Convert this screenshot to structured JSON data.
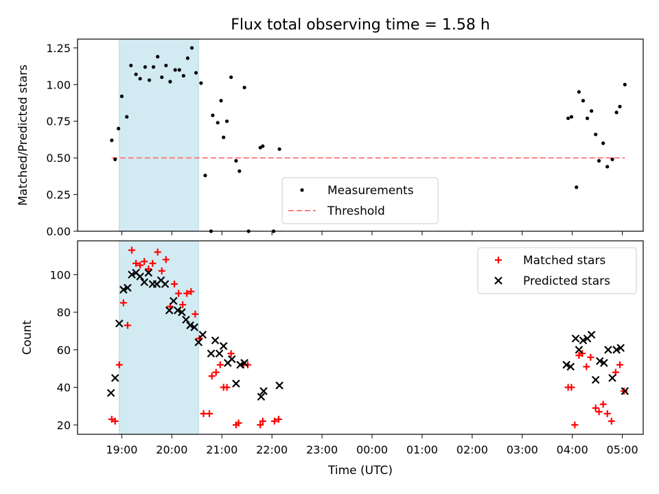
{
  "title": "Flux total observing time = 1.58 h",
  "colors": {
    "measurement": "#000000",
    "threshold": "#ff8080",
    "matched": "#ff0000",
    "predicted": "#000000",
    "span": "#add8e6"
  },
  "chart_data": [
    {
      "type": "scatter",
      "panel": "top",
      "ylabel": "Matched/Predicted stars",
      "xlabel": "",
      "ylim": [
        0,
        1.31
      ],
      "xlim": [
        "18:07",
        "05:25"
      ],
      "yticks": [
        "0.00",
        "0.25",
        "0.50",
        "0.75",
        "1.00",
        "1.25"
      ],
      "ytick_values": [
        0,
        0.25,
        0.5,
        0.75,
        1.0,
        1.25
      ],
      "xticks": [
        "19:00",
        "20:00",
        "21:00",
        "22:00",
        "23:00",
        "00:00",
        "01:00",
        "02:00",
        "03:00",
        "04:00",
        "05:00"
      ],
      "show_xtick_labels": false,
      "highlight_span": {
        "from": "18:57",
        "to": "20:32"
      },
      "legend": {
        "placement": "lower center",
        "entries": [
          "Measurements",
          "Threshold"
        ]
      },
      "threshold": {
        "name": "Threshold",
        "value": 0.5,
        "from": "18:48",
        "to": "05:03"
      },
      "series": [
        {
          "name": "Measurements",
          "points": [
            [
              "18:48",
              0.62
            ],
            [
              "18:52",
              0.49
            ],
            [
              "18:56",
              0.7
            ],
            [
              "19:00",
              0.92
            ],
            [
              "19:06",
              0.78
            ],
            [
              "19:11",
              1.13
            ],
            [
              "19:17",
              1.07
            ],
            [
              "19:22",
              1.04
            ],
            [
              "19:28",
              1.12
            ],
            [
              "19:33",
              1.03
            ],
            [
              "19:38",
              1.12
            ],
            [
              "19:43",
              1.19
            ],
            [
              "19:48",
              1.05
            ],
            [
              "19:53",
              1.13
            ],
            [
              "19:58",
              1.02
            ],
            [
              "20:04",
              1.1
            ],
            [
              "20:09",
              1.1
            ],
            [
              "20:14",
              1.06
            ],
            [
              "20:19",
              1.18
            ],
            [
              "20:24",
              1.25
            ],
            [
              "20:29",
              1.08
            ],
            [
              "20:35",
              1.01
            ],
            [
              "20:40",
              0.38
            ],
            [
              "20:47",
              0.0
            ],
            [
              "20:49",
              0.79
            ],
            [
              "20:55",
              0.74
            ],
            [
              "20:59",
              0.89
            ],
            [
              "21:02",
              0.64
            ],
            [
              "21:06",
              0.75
            ],
            [
              "21:11",
              1.05
            ],
            [
              "21:17",
              0.48
            ],
            [
              "21:21",
              0.41
            ],
            [
              "21:27",
              0.98
            ],
            [
              "21:32",
              0.0
            ],
            [
              "21:46",
              0.57
            ],
            [
              "21:49",
              0.58
            ],
            [
              "22:02",
              0.0
            ],
            [
              "22:09",
              0.56
            ],
            [
              "03:55",
              0.77
            ],
            [
              "03:59",
              0.78
            ],
            [
              "04:05",
              0.3
            ],
            [
              "04:08",
              0.95
            ],
            [
              "04:13",
              0.89
            ],
            [
              "04:18",
              0.77
            ],
            [
              "04:23",
              0.82
            ],
            [
              "04:28",
              0.66
            ],
            [
              "04:32",
              0.48
            ],
            [
              "04:37",
              0.6
            ],
            [
              "04:42",
              0.44
            ],
            [
              "04:48",
              0.49
            ],
            [
              "04:53",
              0.81
            ],
            [
              "04:57",
              0.85
            ],
            [
              "05:03",
              1.0
            ]
          ]
        }
      ]
    },
    {
      "type": "scatter",
      "panel": "bottom",
      "ylabel": "Count",
      "xlabel": "Time (UTC)",
      "ylim": [
        15,
        118
      ],
      "xlim": [
        "18:07",
        "05:25"
      ],
      "yticks": [
        "20",
        "40",
        "60",
        "80",
        "100"
      ],
      "ytick_values": [
        20,
        40,
        60,
        80,
        100
      ],
      "xticks": [
        "19:00",
        "20:00",
        "21:00",
        "22:00",
        "23:00",
        "00:00",
        "01:00",
        "02:00",
        "03:00",
        "04:00",
        "05:00"
      ],
      "show_xtick_labels": true,
      "highlight_span": {
        "from": "18:57",
        "to": "20:32"
      },
      "legend": {
        "placement": "upper right",
        "entries": [
          "Matched stars",
          "Predicted stars"
        ]
      },
      "series": [
        {
          "name": "Matched stars",
          "marker": "plus",
          "points": [
            [
              "18:48",
              23
            ],
            [
              "18:52",
              22
            ],
            [
              "18:57",
              52
            ],
            [
              "19:02",
              85
            ],
            [
              "19:07",
              73
            ],
            [
              "19:12",
              113
            ],
            [
              "19:17",
              106
            ],
            [
              "19:22",
              105
            ],
            [
              "19:27",
              107
            ],
            [
              "19:32",
              103
            ],
            [
              "19:37",
              106
            ],
            [
              "19:43",
              112
            ],
            [
              "19:48",
              102
            ],
            [
              "19:53",
              108
            ],
            [
              "19:58",
              83
            ],
            [
              "20:03",
              95
            ],
            [
              "20:08",
              90
            ],
            [
              "20:13",
              84
            ],
            [
              "20:18",
              90
            ],
            [
              "20:23",
              91
            ],
            [
              "20:28",
              79
            ],
            [
              "20:33",
              66
            ],
            [
              "20:38",
              26
            ],
            [
              "20:45",
              26
            ],
            [
              "20:48",
              46
            ],
            [
              "20:53",
              48
            ],
            [
              "20:58",
              52
            ],
            [
              "21:02",
              40
            ],
            [
              "21:06",
              40
            ],
            [
              "21:11",
              58
            ],
            [
              "21:17",
              20
            ],
            [
              "21:20",
              21
            ],
            [
              "21:26",
              52
            ],
            [
              "21:31",
              52
            ],
            [
              "21:46",
              20
            ],
            [
              "21:49",
              22
            ],
            [
              "22:03",
              22
            ],
            [
              "22:08",
              23
            ],
            [
              "03:55",
              40
            ],
            [
              "03:59",
              40
            ],
            [
              "04:03",
              20
            ],
            [
              "04:08",
              57
            ],
            [
              "04:12",
              58
            ],
            [
              "04:17",
              51
            ],
            [
              "04:22",
              56
            ],
            [
              "04:28",
              29
            ],
            [
              "04:32",
              27
            ],
            [
              "04:37",
              31
            ],
            [
              "04:42",
              26
            ],
            [
              "04:47",
              22
            ],
            [
              "04:52",
              48
            ],
            [
              "04:57",
              52
            ],
            [
              "05:02",
              38
            ]
          ]
        },
        {
          "name": "Predicted stars",
          "marker": "x",
          "points": [
            [
              "18:47",
              37
            ],
            [
              "18:52",
              45
            ],
            [
              "18:57",
              74
            ],
            [
              "19:02",
              92
            ],
            [
              "19:07",
              93
            ],
            [
              "19:12",
              100
            ],
            [
              "19:17",
              101
            ],
            [
              "19:22",
              99
            ],
            [
              "19:27",
              96
            ],
            [
              "19:32",
              101
            ],
            [
              "19:37",
              95
            ],
            [
              "19:42",
              95
            ],
            [
              "19:47",
              97
            ],
            [
              "19:52",
              95
            ],
            [
              "19:57",
              81
            ],
            [
              "20:02",
              86
            ],
            [
              "20:07",
              81
            ],
            [
              "20:12",
              80
            ],
            [
              "20:17",
              76
            ],
            [
              "20:22",
              73
            ],
            [
              "20:27",
              72
            ],
            [
              "20:32",
              64
            ],
            [
              "20:37",
              68
            ],
            [
              "20:47",
              58
            ],
            [
              "20:52",
              65
            ],
            [
              "20:57",
              58
            ],
            [
              "21:02",
              62
            ],
            [
              "21:07",
              53
            ],
            [
              "21:12",
              55
            ],
            [
              "21:17",
              42
            ],
            [
              "21:22",
              52
            ],
            [
              "21:27",
              53
            ],
            [
              "21:47",
              35
            ],
            [
              "21:50",
              38
            ],
            [
              "22:09",
              41
            ],
            [
              "03:53",
              52
            ],
            [
              "03:58",
              51
            ],
            [
              "04:04",
              66
            ],
            [
              "04:08",
              60
            ],
            [
              "04:13",
              65
            ],
            [
              "04:18",
              66
            ],
            [
              "04:23",
              68
            ],
            [
              "04:28",
              44
            ],
            [
              "04:33",
              54
            ],
            [
              "04:38",
              53
            ],
            [
              "04:43",
              60
            ],
            [
              "04:48",
              45
            ],
            [
              "04:53",
              60
            ],
            [
              "04:58",
              61
            ],
            [
              "05:03",
              38
            ]
          ]
        }
      ]
    }
  ]
}
